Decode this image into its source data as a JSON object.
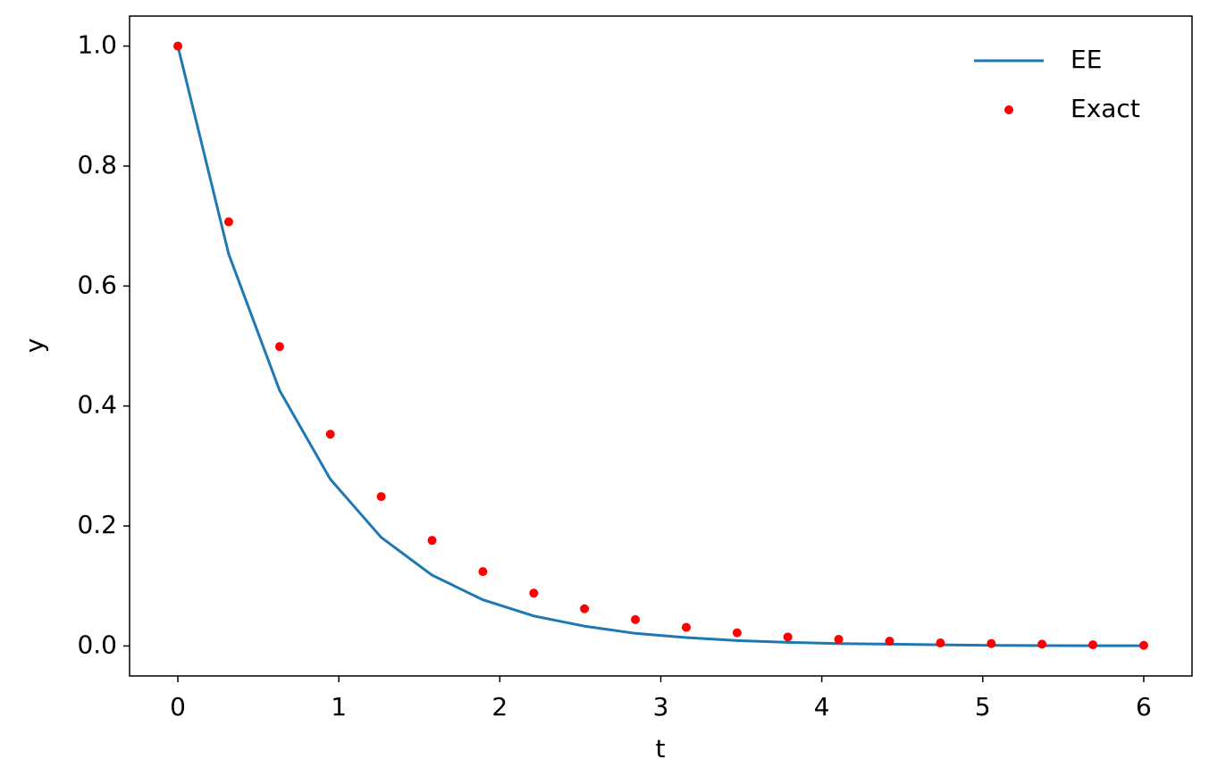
{
  "chart_data": {
    "type": "line_scatter",
    "x_label": "t",
    "y_label": "y",
    "x": [
      0,
      0.316,
      0.632,
      0.947,
      1.263,
      1.579,
      1.895,
      2.211,
      2.526,
      2.842,
      3.158,
      3.474,
      3.789,
      4.105,
      4.421,
      4.737,
      5.053,
      5.368,
      5.684,
      6.0
    ],
    "series": [
      {
        "name": "EE",
        "color": "#1f77b4",
        "kind": "line",
        "values": [
          1.0,
          0.653,
          0.426,
          0.278,
          0.181,
          0.118,
          0.077,
          0.05,
          0.033,
          0.021,
          0.014,
          0.009,
          0.006,
          0.004,
          0.003,
          0.002,
          0.001,
          0.0007,
          0.0005,
          0.0003
        ]
      },
      {
        "name": "Exact",
        "color": "#ff0000",
        "kind": "points",
        "values": [
          1.0,
          0.707,
          0.499,
          0.353,
          0.249,
          0.176,
          0.124,
          0.088,
          0.062,
          0.044,
          0.031,
          0.022,
          0.015,
          0.011,
          0.008,
          0.005,
          0.004,
          0.003,
          0.002,
          0.001
        ]
      }
    ],
    "xlim": [
      -0.3,
      6.3
    ],
    "ylim": [
      -0.05,
      1.05
    ],
    "xticks": [
      0,
      1,
      2,
      3,
      4,
      5,
      6
    ],
    "yticks": [
      {
        "value": 0,
        "label": "0.0"
      },
      {
        "value": 0.2,
        "label": "0.2"
      },
      {
        "value": 0.4,
        "label": "0.4"
      },
      {
        "value": 0.6,
        "label": "0.6"
      },
      {
        "value": 0.8,
        "label": "0.8"
      },
      {
        "value": 1,
        "label": "1.0"
      }
    ],
    "legend": "upper-right",
    "grid": false
  }
}
